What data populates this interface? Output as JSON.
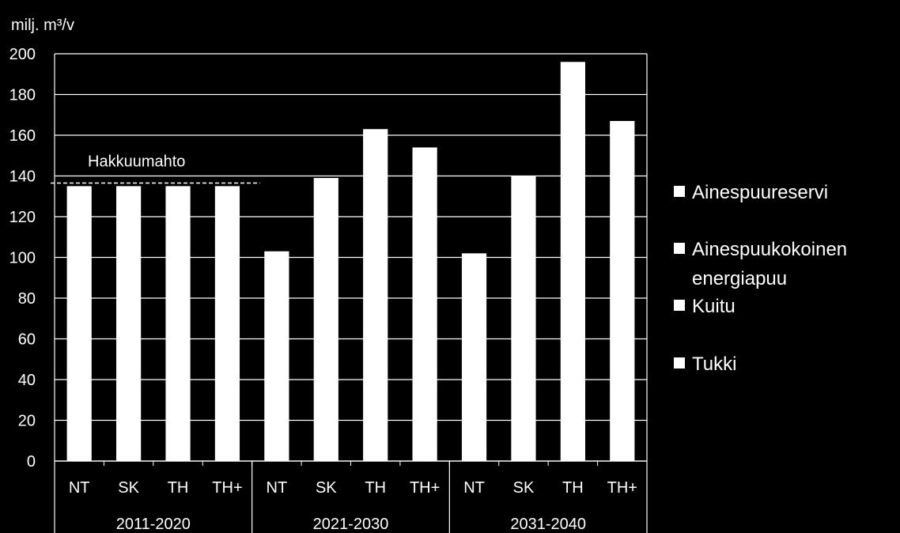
{
  "chart_data": {
    "type": "bar",
    "ylabel": "milj.  m³/v",
    "ylim": [
      0,
      200
    ],
    "yticks": [
      "0",
      "20",
      "40",
      "60",
      "80",
      "100",
      "120",
      "140",
      "160",
      "180",
      "200"
    ],
    "grid": true,
    "legend_position": "right",
    "groups": [
      {
        "label": "2011-2020",
        "categories": [
          "NT",
          "SK",
          "TH",
          "TH+"
        ],
        "values": [
          135,
          135,
          135,
          135
        ]
      },
      {
        "label": "2021-2030",
        "categories": [
          "NT",
          "SK",
          "TH",
          "TH+"
        ],
        "values": [
          103,
          139,
          163,
          154
        ]
      },
      {
        "label": "2031-2040",
        "categories": [
          "NT",
          "SK",
          "TH",
          "TH+"
        ],
        "values": [
          102,
          140,
          196,
          167
        ]
      }
    ],
    "legend": [
      {
        "lines": [
          "Ainespuureservi"
        ]
      },
      {
        "lines": [
          "Ainespuukokoinen",
          "energiapuu"
        ]
      },
      {
        "lines": [
          "Kuitu"
        ]
      },
      {
        "lines": [
          "Tukki"
        ]
      }
    ],
    "reference_line": {
      "label": "Hakkuumahto",
      "value": 136.5
    },
    "colors": {
      "background": "#000000",
      "bar": "#ffffff",
      "grid": "#ffffff",
      "text": "#ffffff"
    }
  }
}
